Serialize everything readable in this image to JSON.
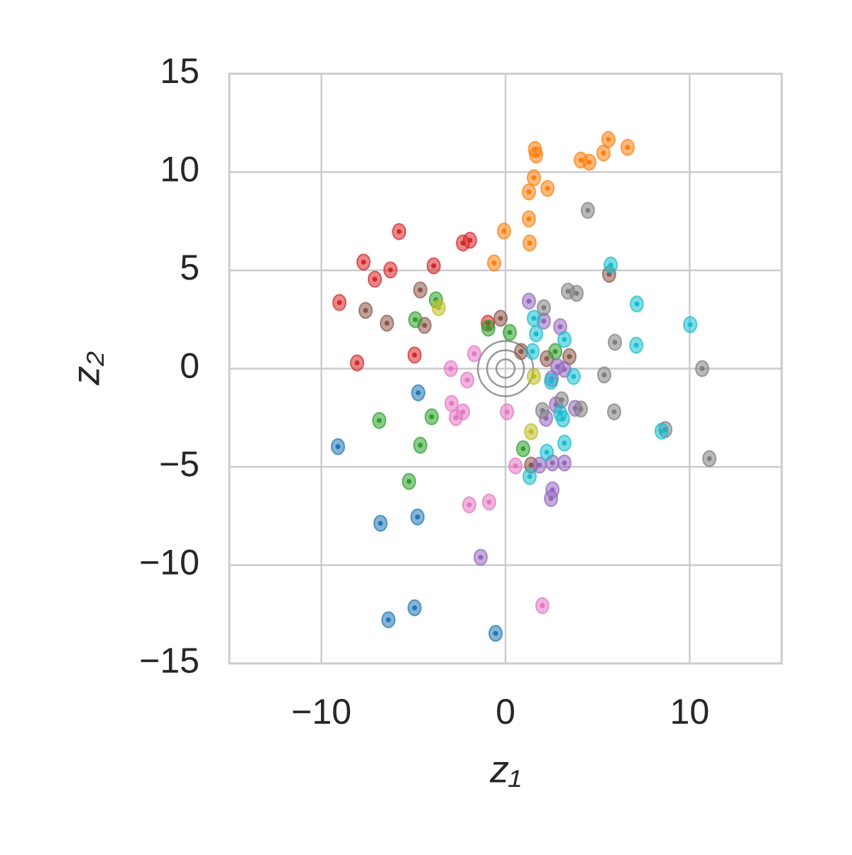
{
  "chart_data": {
    "type": "scatter",
    "xlabel": "z₁",
    "ylabel": "z₂",
    "xlim": [
      -15,
      15
    ],
    "ylim": [
      -15,
      15
    ],
    "xticks": [
      {
        "value": -10,
        "label": "−10"
      },
      0,
      10
    ],
    "yticks": [
      {
        "value": -15,
        "label": "−15"
      },
      {
        "value": -10,
        "label": "−10"
      },
      {
        "value": -5,
        "label": "−5"
      },
      0,
      5,
      10,
      15
    ],
    "grid": true,
    "prior": {
      "color": "#808080",
      "x": 0,
      "y": 0,
      "radii": [
        0.5,
        1,
        1.5
      ]
    },
    "series": [
      {
        "color": "#ff7f0e",
        "x": [
          1.66,
          1.6,
          4.09,
          4.55,
          5.59,
          5.32,
          6.63,
          1.54,
          1.27,
          2.28,
          1.27,
          1.31,
          -0.08,
          -0.62
        ],
        "values": [
          10.87,
          11.15,
          10.61,
          10.5,
          11.66,
          10.97,
          11.26,
          9.71,
          8.99,
          9.17,
          7.62,
          6.39,
          7.0,
          5.38
        ]
      },
      {
        "color": "#d62728",
        "x": [
          -5.78,
          -2.31,
          -1.93,
          -7.71,
          -6.25,
          -7.1,
          -3.9,
          -9.02,
          -8.06,
          -4.94,
          -0.96
        ],
        "values": [
          6.97,
          6.39,
          6.53,
          5.42,
          5.02,
          4.55,
          5.23,
          3.36,
          0.29,
          0.69,
          2.31
        ]
      },
      {
        "color": "#8c564b",
        "x": [
          -4.63,
          -7.6,
          -6.44,
          -4.4,
          -0.27,
          0.85,
          2.24,
          3.47,
          5.63,
          1.39
        ],
        "values": [
          4.0,
          2.96,
          2.31,
          2.2,
          2.56,
          0.87,
          0.51,
          0.61,
          4.8,
          -4.91
        ]
      },
      {
        "color": "#2ca02c",
        "x": [
          -3.78,
          -4.9,
          -0.93,
          0.23,
          2.7,
          -4.01,
          -6.86,
          -4.63,
          -5.24,
          0.96
        ],
        "values": [
          3.5,
          2.49,
          2.06,
          1.84,
          0.87,
          -2.45,
          -2.64,
          -3.9,
          -5.74,
          -4.08
        ]
      },
      {
        "color": "#bcbd22",
        "x": [
          -3.63,
          1.54,
          1.39
        ],
        "values": [
          3.1,
          -0.4,
          -3.21
        ]
      },
      {
        "color": "#1f77b4",
        "x": [
          -4.74,
          -9.1,
          -6.79,
          -4.78,
          -4.94,
          -6.36,
          -0.54
        ],
        "values": [
          -1.23,
          -3.97,
          -7.87,
          -7.55,
          -12.17,
          -12.78,
          -13.47
        ]
      },
      {
        "color": "#e377c2",
        "x": [
          -1.7,
          -2.08,
          -2.97,
          -2.93,
          -2.31,
          -2.7,
          0.08,
          0.54,
          -1.97,
          -0.89,
          2.0
        ],
        "values": [
          0.76,
          -0.58,
          0,
          -1.77,
          -2.2,
          -2.49,
          -2.2,
          -4.95,
          -6.93,
          -6.79,
          -12.06
        ]
      },
      {
        "color": "#9467bd",
        "x": [
          1.27,
          2.08,
          2.97,
          3.2,
          2.82,
          2.51,
          3.78,
          2.74,
          2.2,
          1.85,
          2.55,
          3.2,
          2.55,
          2.47,
          -1.35
        ],
        "values": [
          3.43,
          2.42,
          2.13,
          -0.04,
          0.1,
          -0.51,
          -2.02,
          -1.84,
          -2.53,
          -4.91,
          -4.8,
          -4.8,
          -6.17,
          -6.61,
          -9.6
        ]
      },
      {
        "color": "#7f7f7f",
        "x": [
          4.47,
          3.39,
          3.86,
          2.08,
          5.94,
          5.36,
          10.68,
          3.05,
          2.0,
          4.09,
          5.9,
          8.68,
          11.07
        ],
        "values": [
          8.05,
          3.94,
          3.83,
          3.1,
          1.34,
          -0.32,
          0,
          -1.59,
          -2.13,
          -2.06,
          -2.2,
          -3.1,
          -4.58
        ]
      },
      {
        "color": "#17becf",
        "x": [
          5.71,
          7.13,
          10.03,
          1.54,
          1.66,
          3.2,
          1.47,
          2.47,
          3.7,
          7.1,
          2.97,
          3.12,
          8.48,
          3.2,
          2.24,
          1.31
        ],
        "values": [
          5.27,
          3.29,
          2.24,
          2.56,
          1.77,
          1.48,
          0.87,
          -0.65,
          -0.4,
          1.19,
          -2.27,
          -2.56,
          -3.18,
          -3.79,
          -4.26,
          -5.49
        ]
      }
    ]
  }
}
